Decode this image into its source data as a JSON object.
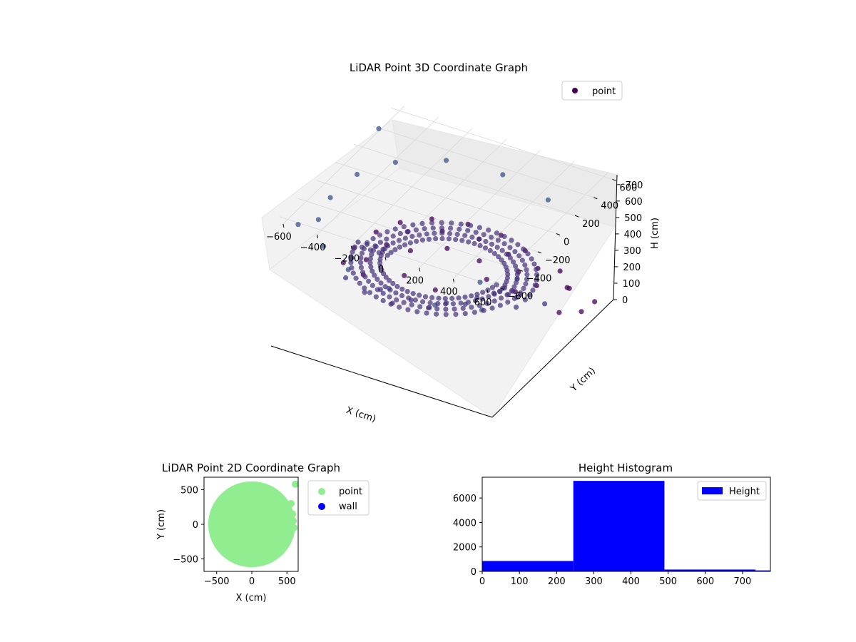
{
  "chart_data": [
    {
      "id": "lidar-3d",
      "type": "scatter",
      "title": "LiDAR Point 3D Coordinate Graph",
      "xlabel": "X (cm)",
      "ylabel": "Y (cm)",
      "zlabel": "H (cm)",
      "xlim": [
        -650,
        650
      ],
      "ylim": [
        -650,
        650
      ],
      "zlim": [
        0,
        760
      ],
      "z_inverted": true,
      "x_ticks": [
        -600,
        -400,
        -200,
        0,
        200,
        400,
        600
      ],
      "y_ticks": [
        -600,
        -400,
        -200,
        0,
        200,
        400,
        600
      ],
      "z_ticks": [
        0,
        100,
        200,
        300,
        400,
        500,
        600,
        700
      ],
      "grid": true,
      "legend_position": "top-right",
      "series": [
        {
          "name": "point",
          "color": "#440154",
          "description_shape": "ring",
          "points": [
            [
              -480,
              150,
              310
            ],
            [
              -420,
              300,
              305
            ],
            [
              -300,
              420,
              300
            ],
            [
              -120,
              480,
              295
            ],
            [
              80,
              470,
              300
            ],
            [
              260,
              400,
              305
            ],
            [
              400,
              280,
              310
            ],
            [
              480,
              120,
              320
            ],
            [
              -500,
              -50,
              315
            ],
            [
              -470,
              -220,
              330
            ],
            [
              -380,
              -360,
              345
            ],
            [
              -220,
              -450,
              360
            ],
            [
              -40,
              -480,
              370
            ],
            [
              150,
              -430,
              380
            ],
            [
              300,
              -320,
              390
            ],
            [
              380,
              -160,
              395
            ],
            [
              420,
              0,
              330
            ],
            [
              -350,
              250,
              300
            ],
            [
              -200,
              350,
              298
            ],
            [
              0,
              380,
              300
            ],
            [
              200,
              330,
              302
            ],
            [
              330,
              200,
              310
            ],
            [
              -380,
              80,
              305
            ],
            [
              -390,
              -120,
              320
            ],
            [
              -320,
              -280,
              340
            ],
            [
              -170,
              -370,
              350
            ],
            [
              20,
              -390,
              360
            ],
            [
              200,
              -340,
              375
            ],
            [
              320,
              -230,
              385
            ],
            [
              -250,
              100,
              300
            ],
            [
              -100,
              220,
              298
            ],
            [
              100,
              200,
              300
            ],
            [
              220,
              60,
              305
            ],
            [
              -150,
              -150,
              320
            ],
            [
              60,
              -200,
              330
            ],
            [
              550,
              350,
              200
            ],
            [
              600,
              150,
              180
            ],
            [
              620,
              -50,
              350
            ],
            [
              560,
              -250,
              420
            ],
            [
              450,
              -420,
              460
            ],
            [
              250,
              -560,
              500
            ],
            [
              0,
              -600,
              540
            ],
            [
              -250,
              -580,
              560
            ],
            [
              -450,
              -480,
              580
            ],
            [
              -580,
              -300,
              600
            ],
            [
              -620,
              -100,
              610
            ],
            [
              -600,
              150,
              620
            ],
            [
              -500,
              380,
              600
            ],
            [
              -300,
              560,
              580
            ],
            [
              0,
              620,
              560
            ],
            [
              300,
              560,
              540
            ],
            [
              500,
              420,
              150
            ],
            [
              650,
              300,
              120
            ],
            [
              640,
              -400,
              700
            ],
            [
              -640,
              450,
              720
            ],
            [
              -200,
              -640,
              680
            ],
            [
              520,
              -580,
              740
            ],
            [
              -560,
              -560,
              720
            ],
            [
              350,
              620,
              90
            ],
            [
              620,
              500,
              60
            ]
          ]
        }
      ]
    },
    {
      "id": "lidar-2d",
      "type": "scatter",
      "title": "LiDAR Point 2D Coordinate Graph",
      "xlabel": "X (cm)",
      "ylabel": "Y (cm)",
      "xlim": [
        -680,
        660
      ],
      "ylim": [
        -680,
        680
      ],
      "x_ticks": [
        -500,
        0,
        500
      ],
      "y_ticks": [
        -500,
        0,
        500
      ],
      "legend_position": "outside-right",
      "series": [
        {
          "name": "point",
          "color": "#90ee90",
          "shape": "filled-disk-radius-cm",
          "radius": 620,
          "points": [
            [
              620,
              580
            ],
            [
              560,
              300
            ],
            [
              580,
              150
            ],
            [
              590,
              50
            ],
            [
              600,
              -50
            ]
          ]
        },
        {
          "name": "wall",
          "color": "#0000ff",
          "points": []
        }
      ]
    },
    {
      "id": "height-histogram",
      "type": "bar",
      "title": "Height Histogram",
      "xlim": [
        0,
        775
      ],
      "ylim": [
        0,
        7700
      ],
      "x_ticks": [
        0,
        100,
        200,
        300,
        400,
        500,
        600,
        700
      ],
      "y_ticks": [
        0,
        2000,
        4000,
        6000
      ],
      "legend_position": "top-right",
      "series": [
        {
          "name": "Height",
          "color": "#0000ff",
          "bins": [
            {
              "start": 0,
              "end": 245,
              "count": 850
            },
            {
              "start": 245,
              "end": 490,
              "count": 7400
            },
            {
              "start": 490,
              "end": 735,
              "count": 150
            },
            {
              "start": 735,
              "end": 980,
              "count": 80
            }
          ]
        }
      ]
    }
  ]
}
